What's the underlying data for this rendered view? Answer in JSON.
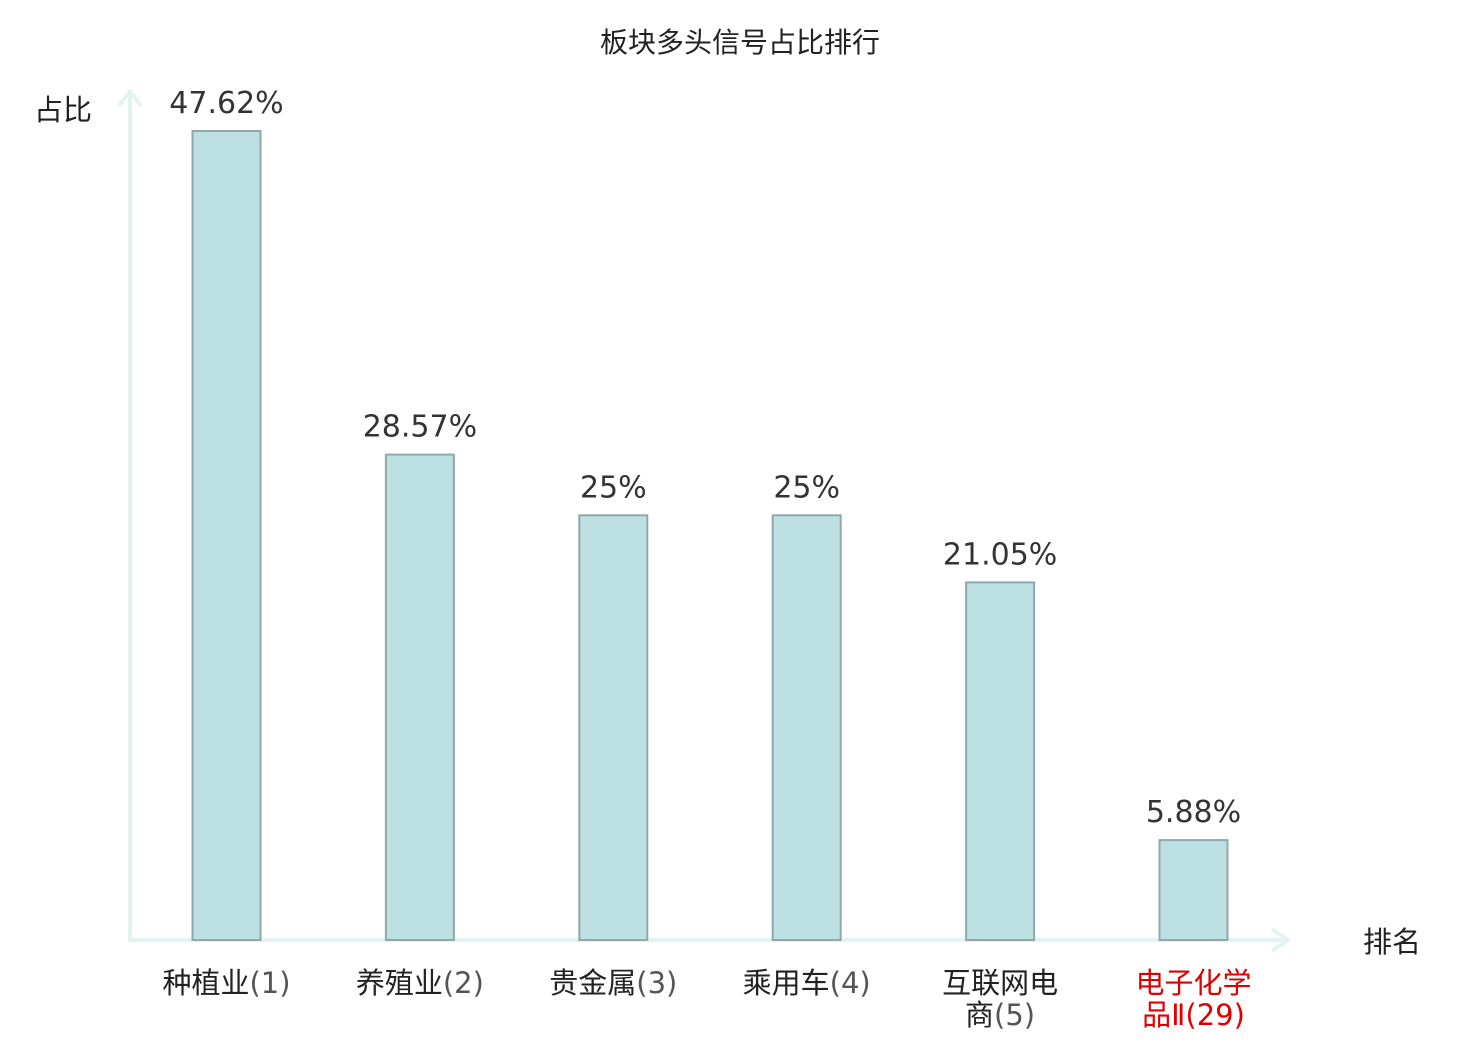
{
  "chart_data": {
    "type": "bar",
    "title": "板块多头信号占比排行",
    "ylabel": "占比",
    "xlabel": "排名",
    "categories": [
      {
        "name_lines": [
          "种植业"
        ],
        "rank": "(1)",
        "highlight": false
      },
      {
        "name_lines": [
          "养殖业"
        ],
        "rank": "(2)",
        "highlight": false
      },
      {
        "name_lines": [
          "贵金属"
        ],
        "rank": "(3)",
        "highlight": false
      },
      {
        "name_lines": [
          "乘用车"
        ],
        "rank": "(4)",
        "highlight": false
      },
      {
        "name_lines": [
          "互联网电",
          "商"
        ],
        "rank": "(5)",
        "highlight": true,
        "_hl": false
      },
      {
        "name_lines": [
          "电子化学",
          "品Ⅱ"
        ],
        "rank": "(29)",
        "highlight": true
      }
    ],
    "values": [
      47.62,
      28.57,
      25,
      25,
      21.05,
      5.88
    ],
    "value_labels": [
      "47.62%",
      "28.57%",
      "25%",
      "25%",
      "21.05%",
      "5.88%"
    ],
    "ylim": [
      0,
      50
    ],
    "grid": false,
    "colors": {
      "bar_fill": "#bde0e3",
      "bar_stroke": "#8fa8ab",
      "axis": "#e3f3f1",
      "text": "#222222",
      "value_text": "#333333",
      "highlight": "#e00000"
    }
  }
}
